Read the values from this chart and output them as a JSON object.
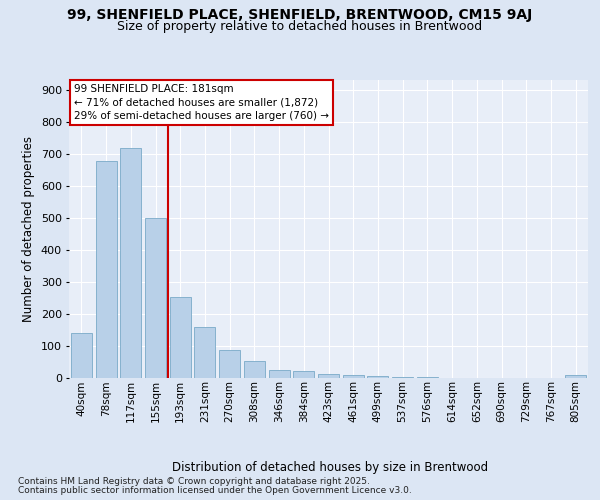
{
  "title_line1": "99, SHENFIELD PLACE, SHENFIELD, BRENTWOOD, CM15 9AJ",
  "title_line2": "Size of property relative to detached houses in Brentwood",
  "xlabel": "Distribution of detached houses by size in Brentwood",
  "ylabel": "Number of detached properties",
  "categories": [
    "40sqm",
    "78sqm",
    "117sqm",
    "155sqm",
    "193sqm",
    "231sqm",
    "270sqm",
    "308sqm",
    "346sqm",
    "384sqm",
    "423sqm",
    "461sqm",
    "499sqm",
    "537sqm",
    "576sqm",
    "614sqm",
    "652sqm",
    "690sqm",
    "729sqm",
    "767sqm",
    "805sqm"
  ],
  "values": [
    140,
    678,
    718,
    500,
    253,
    157,
    86,
    51,
    25,
    19,
    12,
    8,
    5,
    3,
    1,
    0,
    0,
    0,
    0,
    0,
    8
  ],
  "bar_color": "#b8d0e8",
  "bar_edge_color": "#7aaac8",
  "vline_color": "#cc0000",
  "vline_x": 3.5,
  "annotation_text": "99 SHENFIELD PLACE: 181sqm\n← 71% of detached houses are smaller (1,872)\n29% of semi-detached houses are larger (760) →",
  "annotation_box_edgecolor": "#cc0000",
  "annotation_bg": "white",
  "ylim": [
    0,
    930
  ],
  "yticks": [
    0,
    100,
    200,
    300,
    400,
    500,
    600,
    700,
    800,
    900
  ],
  "footnote1": "Contains HM Land Registry data © Crown copyright and database right 2025.",
  "footnote2": "Contains public sector information licensed under the Open Government Licence v3.0.",
  "bg_color": "#dce6f4",
  "plot_bg_color": "#e8eef8",
  "grid_color": "#ffffff"
}
